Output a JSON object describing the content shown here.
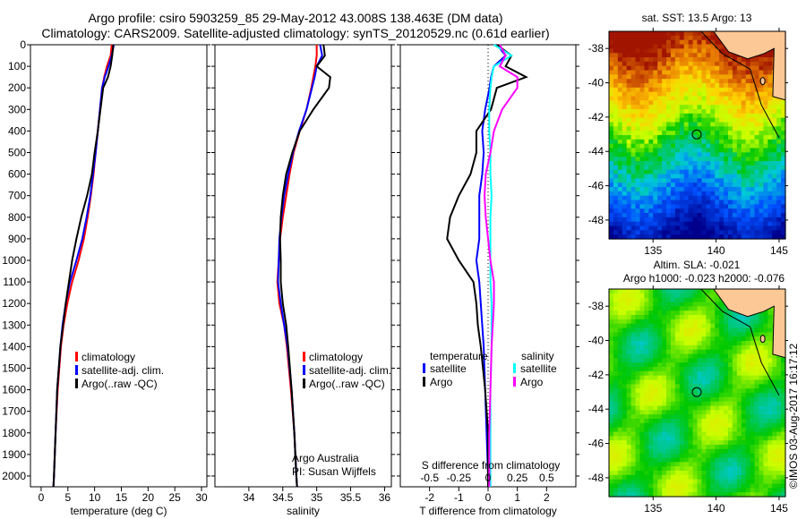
{
  "title_line1": "Argo profile: csiro 5903259_85 29-May-2012 43.008S 138.463E (DM data)",
  "title_line2": "Climatology: CARS2009. Satellite-adjusted climatology: synTS_20120529.nc (0.61d earlier)",
  "side_text": "©IMOS 03-Aug-2017 16:17:12",
  "colors": {
    "climatology": "#ff0000",
    "satellite": "#0000ff",
    "argo": "#000000",
    "sal_satellite": "#00ffff",
    "sal_argo": "#ff00ff"
  },
  "chart_data": [
    {
      "type": "line",
      "xlabel": "temperature (deg C)",
      "ylabel": "",
      "xlim": [
        -2,
        31
      ],
      "ylim": [
        2050,
        0
      ],
      "xticks": [
        0,
        5,
        10,
        15,
        20,
        25,
        30
      ],
      "yticks": [
        0,
        100,
        200,
        300,
        400,
        500,
        600,
        700,
        800,
        900,
        1000,
        1100,
        1200,
        1300,
        1400,
        1500,
        1600,
        1700,
        1800,
        1900,
        2000
      ],
      "depth": [
        0,
        50,
        100,
        150,
        200,
        300,
        400,
        500,
        600,
        700,
        800,
        900,
        1000,
        1100,
        1200,
        1300,
        1400,
        1600,
        1800,
        2000,
        2050
      ],
      "legend": [
        "climatology",
        "satellite-adj. clim.",
        "Argo(..raw -QC)"
      ],
      "series": [
        {
          "name": "climatology",
          "values": [
            13.2,
            13.0,
            12.3,
            11.8,
            11.4,
            11.0,
            10.6,
            10.2,
            9.8,
            9.3,
            8.7,
            8.0,
            7.0,
            5.8,
            4.9,
            4.2,
            3.7,
            3.1,
            2.7,
            2.4,
            2.3
          ]
        },
        {
          "name": "satellite-adj. clim.",
          "values": [
            13.6,
            13.2,
            12.6,
            11.9,
            11.4,
            11.0,
            10.6,
            10.2,
            9.7,
            9.2,
            8.5,
            7.7,
            6.6,
            5.4,
            4.6,
            4.0,
            3.6,
            3.0,
            2.7,
            2.4,
            2.3
          ]
        },
        {
          "name": "Argo(..raw -QC)",
          "values": [
            13.5,
            13.3,
            13.0,
            12.5,
            11.6,
            11.1,
            10.6,
            10.0,
            9.5,
            8.6,
            7.5,
            6.6,
            5.8,
            5.2,
            4.6,
            4.1,
            3.6,
            3.0,
            2.7,
            2.4,
            2.3
          ]
        }
      ]
    },
    {
      "type": "line",
      "xlabel": "salinity",
      "xlim": [
        33.5,
        36.1
      ],
      "ylim": [
        2050,
        0
      ],
      "xticks": [
        34,
        34.5,
        35,
        35.5,
        36
      ],
      "xtick_labels": [
        "34",
        "34.5",
        "35",
        "35.5",
        "36"
      ],
      "depth": [
        0,
        50,
        100,
        150,
        200,
        300,
        400,
        500,
        600,
        700,
        800,
        900,
        1000,
        1100,
        1200,
        1300,
        1400,
        1600,
        1800,
        2000,
        2050
      ],
      "legend": [
        "climatology",
        "satellite-adj. clim.",
        "Argo(..raw -QC)"
      ],
      "annotation": [
        "Argo Australia",
        "PI: Susan Wijffels"
      ],
      "series": [
        {
          "name": "climatology",
          "values": [
            35.0,
            35.0,
            34.98,
            34.95,
            34.92,
            34.85,
            34.75,
            34.66,
            34.6,
            34.55,
            34.5,
            34.46,
            34.44,
            34.42,
            34.45,
            34.52,
            34.56,
            34.62,
            34.67,
            34.7,
            34.71
          ]
        },
        {
          "name": "satellite-adj. clim.",
          "values": [
            35.05,
            35.08,
            35.0,
            34.97,
            34.93,
            34.85,
            34.74,
            34.65,
            34.58,
            34.52,
            34.48,
            34.45,
            34.44,
            34.43,
            34.47,
            34.52,
            34.57,
            34.63,
            34.67,
            34.7,
            34.71
          ]
        },
        {
          "name": "Argo(..raw -QC)",
          "values": [
            35.1,
            35.12,
            35.0,
            35.2,
            35.18,
            34.95,
            34.75,
            34.64,
            34.55,
            34.5,
            34.47,
            34.46,
            34.47,
            34.47,
            34.5,
            34.55,
            34.58,
            34.63,
            34.67,
            34.7,
            34.71
          ]
        }
      ]
    },
    {
      "type": "line",
      "xlabel": "T difference from climatology",
      "x2label": "S difference from climatology",
      "xlim": [
        -3,
        3
      ],
      "ylim": [
        2050,
        0
      ],
      "xticks": [
        -2,
        -1,
        0,
        1,
        2
      ],
      "x2ticks": [
        "-0.5",
        "-0.25",
        "0",
        "0.25",
        "0.5"
      ],
      "legend_t": [
        "temperature",
        "satellite",
        "Argo"
      ],
      "legend_s": [
        "salinity",
        "satellite",
        "Argo"
      ],
      "depth": [
        0,
        50,
        100,
        150,
        200,
        300,
        400,
        500,
        600,
        700,
        800,
        900,
        1000,
        1100,
        1200,
        1300,
        1400,
        1600,
        1800,
        2000,
        2050
      ],
      "series": [
        {
          "name": "T satellite",
          "values": [
            0.3,
            0.6,
            0.2,
            0.1,
            0.05,
            -0.1,
            -0.2,
            -0.15,
            -0.2,
            -0.3,
            -0.3,
            -0.3,
            -0.4,
            -0.3,
            -0.25,
            -0.2,
            -0.15,
            -0.1,
            -0.05,
            0,
            0
          ]
        },
        {
          "name": "T Argo",
          "values": [
            0.3,
            0.8,
            0.6,
            1.3,
            0.3,
            0.1,
            -0.4,
            -0.4,
            -0.6,
            -1.0,
            -1.3,
            -1.4,
            -1.0,
            -0.5,
            -0.4,
            -0.35,
            -0.25,
            -0.1,
            0,
            0,
            0
          ]
        },
        {
          "name": "S satellite",
          "values": [
            0.05,
            0.2,
            0.05,
            0.03,
            0.02,
            0.01,
            0.01,
            0.02,
            0.02,
            0.03,
            0.02,
            0.02,
            0.02,
            0.02,
            0.03,
            0.03,
            0.03,
            0.02,
            0.02,
            0.02,
            0.02
          ]
        },
        {
          "name": "S Argo",
          "values": [
            0.1,
            0.15,
            0.1,
            0.25,
            0.25,
            0.12,
            0.05,
            0.02,
            -0.02,
            -0.03,
            -0.02,
            0.0,
            0.02,
            0.05,
            0.05,
            0.04,
            0.03,
            0.02,
            0.01,
            0.01,
            0.01
          ]
        }
      ]
    },
    {
      "type": "heatmap",
      "title": "sat. SST: 13.5 Argo: 13",
      "xlim": [
        131.5,
        145.5
      ],
      "ylim": [
        -49.1,
        -37
      ],
      "xticks": [
        135,
        140,
        145
      ],
      "yticks": [
        -38,
        -40,
        -42,
        -44,
        -46,
        -48
      ],
      "marker": [
        138.463,
        -43.008
      ]
    },
    {
      "type": "heatmap",
      "title": "Altim. SLA: -0.021",
      "title2": "Argo h1000: -0.023 h2000: -0.076",
      "xlim": [
        131.5,
        145.5
      ],
      "ylim": [
        -49.1,
        -37
      ],
      "xticks": [
        135,
        140,
        145
      ],
      "yticks": [
        -38,
        -40,
        -42,
        -44,
        -46,
        -48
      ],
      "marker": [
        138.463,
        -43.008
      ]
    }
  ]
}
